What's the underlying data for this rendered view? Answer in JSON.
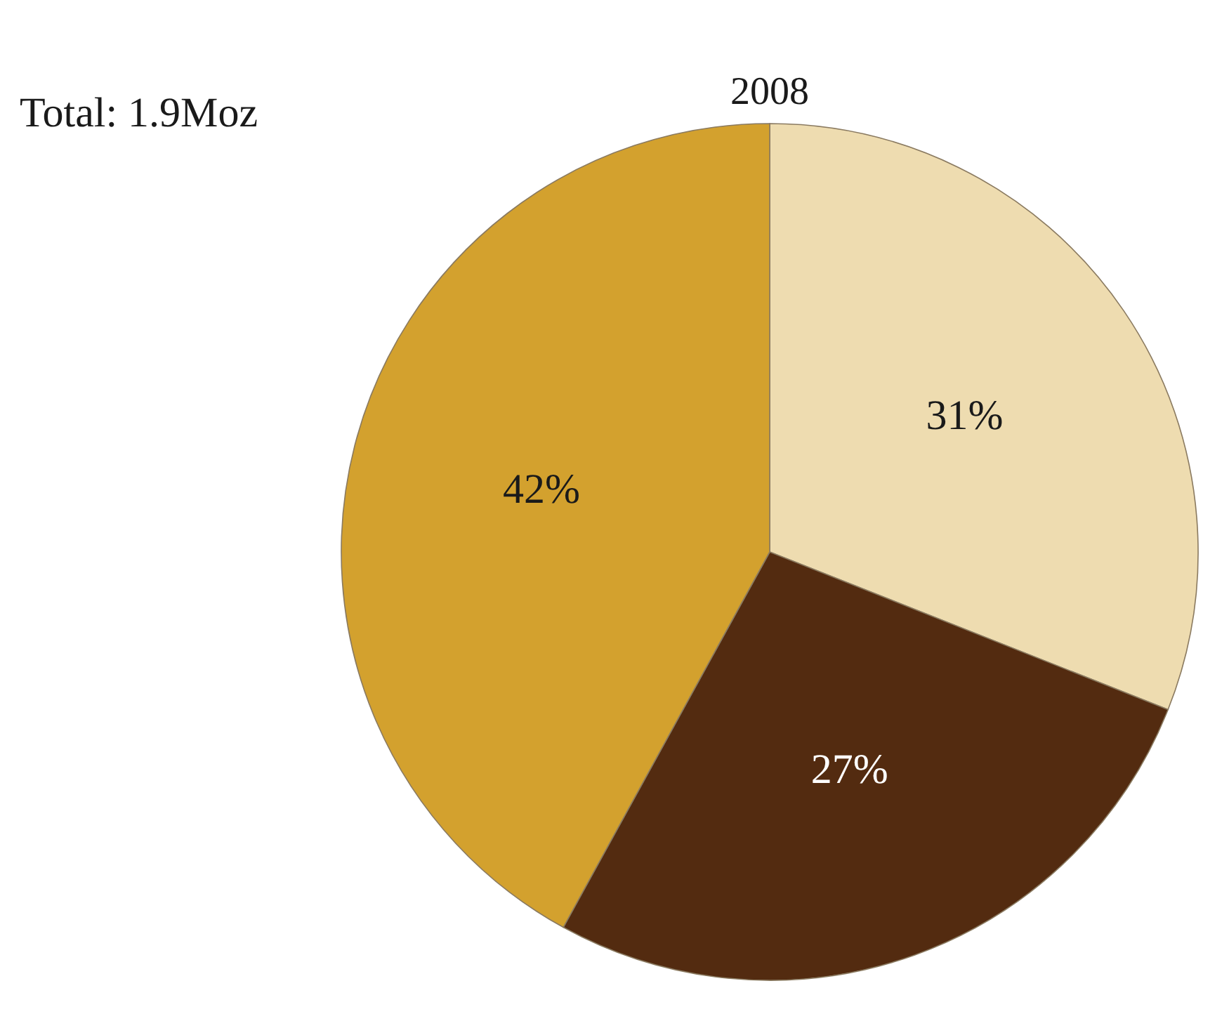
{
  "chart_data": {
    "type": "pie",
    "title": "2008",
    "annotations": [
      "Total: 1.9Moz"
    ],
    "categories": [
      null,
      null,
      null
    ],
    "values": [
      31,
      27,
      42
    ],
    "value_labels": [
      "31%",
      "27%",
      "42%"
    ],
    "colors": [
      "#eedcb0",
      "#532b10",
      "#d3a12e"
    ]
  }
}
